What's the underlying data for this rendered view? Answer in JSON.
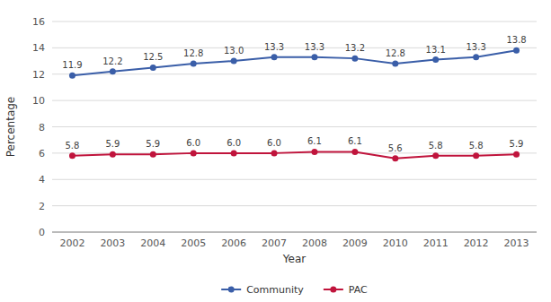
{
  "chart_data": {
    "type": "line",
    "x": [
      2002,
      2003,
      2004,
      2005,
      2006,
      2007,
      2008,
      2009,
      2010,
      2011,
      2012,
      2013
    ],
    "xlim": [
      2001.5,
      2013.5
    ],
    "xticks": [
      2002,
      2003,
      2004,
      2005,
      2006,
      2007,
      2008,
      2009,
      2010,
      2011,
      2012,
      2013
    ],
    "ylim": [
      0,
      16
    ],
    "yticks": [
      0,
      2,
      4,
      6,
      8,
      10,
      12,
      14,
      16
    ],
    "xlabel": "Year",
    "ylabel": "Percentage",
    "grid": true,
    "legend": "bottom",
    "data_labels": true,
    "marker": "circle",
    "series": [
      {
        "name": "Community",
        "color": "#3A5EA8",
        "values": [
          11.9,
          12.2,
          12.5,
          12.8,
          13.0,
          13.3,
          13.3,
          13.2,
          12.8,
          13.1,
          13.3,
          13.8
        ],
        "value_labels": [
          "11.9",
          "12.2",
          "12.5",
          "12.8",
          "13.0",
          "13.3",
          "13.3",
          "13.2",
          "12.8",
          "13.1",
          "13.3",
          "13.8"
        ]
      },
      {
        "name": "PAC",
        "color": "#C0143C",
        "values": [
          5.8,
          5.9,
          5.9,
          6.0,
          6.0,
          6.0,
          6.1,
          6.1,
          5.6,
          5.8,
          5.8,
          5.9
        ],
        "value_labels": [
          "5.8",
          "5.9",
          "5.9",
          "6.0",
          "6.0",
          "6.0",
          "6.1",
          "6.1",
          "5.6",
          "5.8",
          "5.8",
          "5.9"
        ]
      }
    ]
  }
}
